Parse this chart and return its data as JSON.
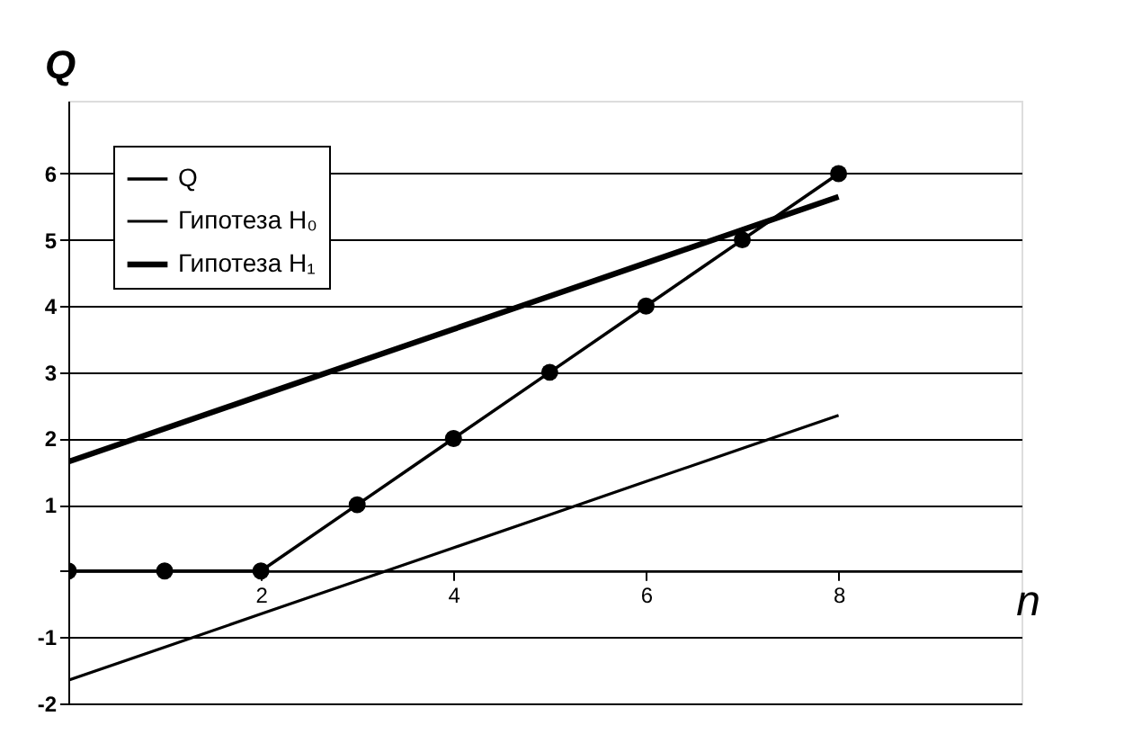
{
  "chart_data": {
    "type": "line",
    "xlabel": "n",
    "ylabel": "Q",
    "x": [
      0,
      1,
      2,
      3,
      4,
      5,
      6,
      7,
      8
    ],
    "series": [
      {
        "name": "Q",
        "color": "#000000",
        "marker": "circle",
        "values": [
          0,
          0,
          0,
          1,
          2,
          3,
          4,
          5,
          6
        ]
      },
      {
        "name": "Гипотеза H₀",
        "color": "#000000",
        "marker": "none",
        "values": [
          -1.65,
          -1.15,
          -0.65,
          -0.15,
          0.35,
          0.85,
          1.35,
          1.85,
          2.35
        ]
      },
      {
        "name": "Гипотеза H₁",
        "color": "#000000",
        "marker": "none",
        "values": [
          1.65,
          2.15,
          2.65,
          3.15,
          3.65,
          4.15,
          4.65,
          5.15,
          5.65
        ]
      }
    ],
    "xlim": [
      0,
      9.9
    ],
    "ylim": [
      -2,
      7.1
    ],
    "xticks": [
      {
        "value": 0,
        "label": null
      },
      2,
      4,
      6,
      8
    ],
    "yticks": [
      -2,
      -1,
      {
        "value": 0,
        "label": null
      },
      1,
      2,
      3,
      4,
      5,
      6
    ],
    "grid": "y",
    "legend": "top left",
    "line_style": "solid"
  }
}
